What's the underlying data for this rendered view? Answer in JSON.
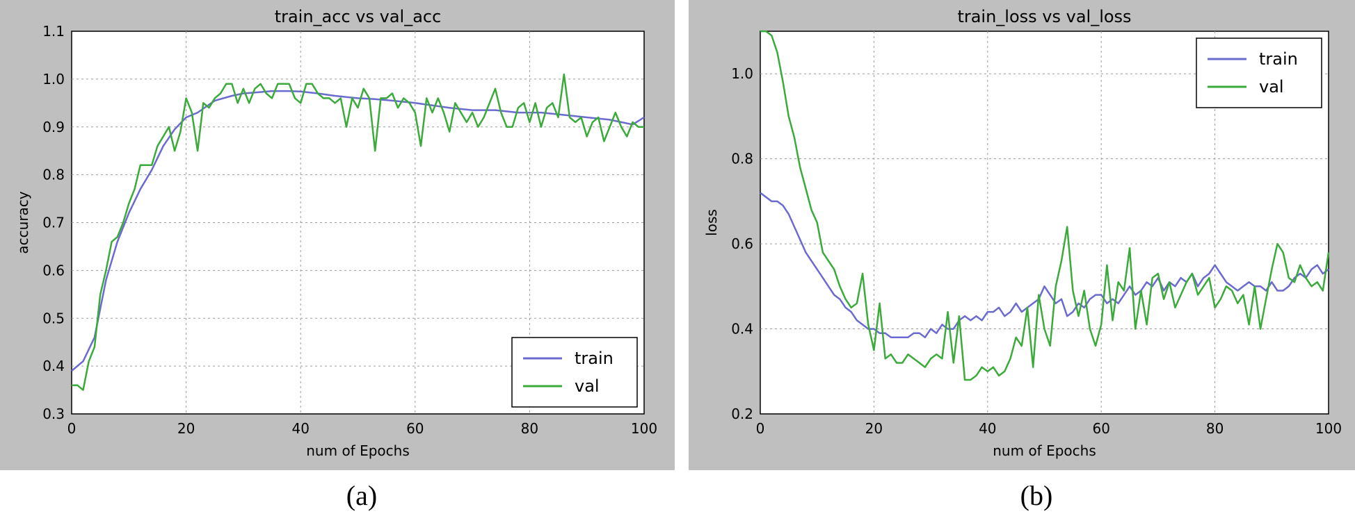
{
  "captions": [
    "(a)",
    "(b)"
  ],
  "chart_data": [
    {
      "type": "line",
      "title": "train_acc vs val_acc",
      "xlabel": "num of Epochs",
      "ylabel": "accuracy",
      "xlim": [
        0,
        100
      ],
      "ylim": [
        0.3,
        1.1
      ],
      "xticks": [
        0,
        20,
        40,
        60,
        80,
        100
      ],
      "yticks": [
        0.3,
        0.4,
        0.5,
        0.6,
        0.7,
        0.8,
        0.9,
        1.0,
        1.1
      ],
      "grid": true,
      "legend_position": "lower-right",
      "series": [
        {
          "name": "train",
          "color": "#6a6ad0",
          "x": [
            0,
            2,
            4,
            6,
            8,
            10,
            12,
            14,
            16,
            18,
            20,
            22,
            25,
            28,
            30,
            32,
            35,
            38,
            40,
            43,
            46,
            50,
            53,
            56,
            60,
            63,
            66,
            70,
            74,
            78,
            82,
            86,
            90,
            94,
            96,
            98,
            100
          ],
          "y": [
            0.39,
            0.41,
            0.46,
            0.58,
            0.66,
            0.72,
            0.77,
            0.81,
            0.86,
            0.895,
            0.92,
            0.93,
            0.955,
            0.965,
            0.97,
            0.972,
            0.975,
            0.975,
            0.974,
            0.97,
            0.965,
            0.96,
            0.958,
            0.955,
            0.95,
            0.945,
            0.94,
            0.935,
            0.935,
            0.93,
            0.93,
            0.925,
            0.92,
            0.915,
            0.91,
            0.905,
            0.92
          ]
        },
        {
          "name": "val",
          "color": "#3aaa3a",
          "x": [
            0,
            1,
            2,
            3,
            4,
            5,
            6,
            7,
            8,
            9,
            10,
            11,
            12,
            13,
            14,
            15,
            16,
            17,
            18,
            19,
            20,
            21,
            22,
            23,
            24,
            25,
            26,
            27,
            28,
            29,
            30,
            31,
            32,
            33,
            34,
            35,
            36,
            37,
            38,
            39,
            40,
            41,
            42,
            43,
            44,
            45,
            46,
            47,
            48,
            49,
            50,
            51,
            52,
            53,
            54,
            55,
            56,
            57,
            58,
            59,
            60,
            61,
            62,
            63,
            64,
            65,
            66,
            67,
            68,
            69,
            70,
            71,
            72,
            73,
            74,
            75,
            76,
            77,
            78,
            79,
            80,
            81,
            82,
            83,
            84,
            85,
            86,
            87,
            88,
            89,
            90,
            91,
            92,
            93,
            94,
            95,
            96,
            97,
            98,
            99,
            100
          ],
          "y": [
            0.36,
            0.36,
            0.35,
            0.41,
            0.44,
            0.55,
            0.6,
            0.66,
            0.67,
            0.7,
            0.74,
            0.77,
            0.82,
            0.82,
            0.82,
            0.86,
            0.88,
            0.9,
            0.85,
            0.89,
            0.96,
            0.93,
            0.85,
            0.95,
            0.94,
            0.96,
            0.97,
            0.99,
            0.99,
            0.95,
            0.98,
            0.95,
            0.98,
            0.99,
            0.97,
            0.96,
            0.99,
            0.99,
            0.99,
            0.96,
            0.95,
            0.99,
            0.99,
            0.97,
            0.96,
            0.96,
            0.95,
            0.96,
            0.9,
            0.96,
            0.94,
            0.98,
            0.96,
            0.85,
            0.96,
            0.96,
            0.97,
            0.94,
            0.96,
            0.95,
            0.93,
            0.86,
            0.96,
            0.93,
            0.96,
            0.93,
            0.89,
            0.95,
            0.93,
            0.91,
            0.93,
            0.9,
            0.92,
            0.95,
            0.98,
            0.93,
            0.9,
            0.9,
            0.94,
            0.95,
            0.91,
            0.95,
            0.9,
            0.94,
            0.95,
            0.92,
            1.01,
            0.92,
            0.91,
            0.92,
            0.88,
            0.91,
            0.92,
            0.87,
            0.9,
            0.93,
            0.9,
            0.88,
            0.91,
            0.9,
            0.9
          ]
        }
      ]
    },
    {
      "type": "line",
      "title": "train_loss vs val_loss",
      "xlabel": "num of Epochs",
      "ylabel": "loss",
      "xlim": [
        0,
        100
      ],
      "ylim": [
        0.2,
        1.1
      ],
      "xticks": [
        0,
        20,
        40,
        60,
        80,
        100
      ],
      "yticks": [
        0.2,
        0.4,
        0.6,
        0.8,
        1.0
      ],
      "grid": true,
      "legend_position": "upper-right",
      "series": [
        {
          "name": "train",
          "color": "#6a6ad0",
          "x": [
            0,
            1,
            2,
            3,
            4,
            5,
            6,
            7,
            8,
            9,
            10,
            11,
            12,
            13,
            14,
            15,
            16,
            17,
            18,
            19,
            20,
            21,
            22,
            23,
            24,
            25,
            26,
            27,
            28,
            29,
            30,
            31,
            32,
            33,
            34,
            35,
            36,
            37,
            38,
            39,
            40,
            41,
            42,
            43,
            44,
            45,
            46,
            47,
            48,
            49,
            50,
            51,
            52,
            53,
            54,
            55,
            56,
            57,
            58,
            59,
            60,
            61,
            62,
            63,
            64,
            65,
            66,
            67,
            68,
            69,
            70,
            71,
            72,
            73,
            74,
            75,
            76,
            77,
            78,
            79,
            80,
            81,
            82,
            83,
            84,
            85,
            86,
            87,
            88,
            89,
            90,
            91,
            92,
            93,
            94,
            95,
            96,
            97,
            98,
            99,
            100
          ],
          "y": [
            0.72,
            0.71,
            0.7,
            0.7,
            0.69,
            0.67,
            0.64,
            0.61,
            0.58,
            0.56,
            0.54,
            0.52,
            0.5,
            0.48,
            0.47,
            0.45,
            0.44,
            0.42,
            0.41,
            0.4,
            0.4,
            0.39,
            0.39,
            0.38,
            0.38,
            0.38,
            0.38,
            0.39,
            0.39,
            0.38,
            0.4,
            0.39,
            0.41,
            0.4,
            0.4,
            0.42,
            0.43,
            0.42,
            0.43,
            0.42,
            0.44,
            0.44,
            0.45,
            0.43,
            0.44,
            0.46,
            0.44,
            0.45,
            0.46,
            0.47,
            0.5,
            0.48,
            0.46,
            0.47,
            0.43,
            0.44,
            0.46,
            0.45,
            0.47,
            0.48,
            0.48,
            0.46,
            0.47,
            0.46,
            0.48,
            0.5,
            0.48,
            0.49,
            0.51,
            0.5,
            0.52,
            0.49,
            0.51,
            0.5,
            0.52,
            0.51,
            0.53,
            0.5,
            0.52,
            0.53,
            0.55,
            0.53,
            0.51,
            0.5,
            0.49,
            0.5,
            0.51,
            0.5,
            0.5,
            0.49,
            0.51,
            0.49,
            0.49,
            0.5,
            0.52,
            0.53,
            0.52,
            0.54,
            0.55,
            0.53,
            0.54
          ]
        },
        {
          "name": "val",
          "color": "#3aaa3a",
          "x": [
            0,
            1,
            2,
            3,
            4,
            5,
            6,
            7,
            8,
            9,
            10,
            11,
            12,
            13,
            14,
            15,
            16,
            17,
            18,
            19,
            20,
            21,
            22,
            23,
            24,
            25,
            26,
            27,
            28,
            29,
            30,
            31,
            32,
            33,
            34,
            35,
            36,
            37,
            38,
            39,
            40,
            41,
            42,
            43,
            44,
            45,
            46,
            47,
            48,
            49,
            50,
            51,
            52,
            53,
            54,
            55,
            56,
            57,
            58,
            59,
            60,
            61,
            62,
            63,
            64,
            65,
            66,
            67,
            68,
            69,
            70,
            71,
            72,
            73,
            74,
            75,
            76,
            77,
            78,
            79,
            80,
            81,
            82,
            83,
            84,
            85,
            86,
            87,
            88,
            89,
            90,
            91,
            92,
            93,
            94,
            95,
            96,
            97,
            98,
            99,
            100
          ],
          "y": [
            1.1,
            1.1,
            1.09,
            1.05,
            0.98,
            0.9,
            0.85,
            0.78,
            0.73,
            0.68,
            0.65,
            0.58,
            0.56,
            0.54,
            0.5,
            0.47,
            0.45,
            0.46,
            0.53,
            0.41,
            0.35,
            0.46,
            0.33,
            0.34,
            0.32,
            0.32,
            0.34,
            0.33,
            0.32,
            0.31,
            0.33,
            0.34,
            0.33,
            0.44,
            0.32,
            0.43,
            0.28,
            0.28,
            0.29,
            0.31,
            0.3,
            0.31,
            0.29,
            0.3,
            0.33,
            0.38,
            0.36,
            0.45,
            0.31,
            0.48,
            0.4,
            0.36,
            0.5,
            0.56,
            0.64,
            0.49,
            0.43,
            0.49,
            0.4,
            0.36,
            0.41,
            0.55,
            0.42,
            0.51,
            0.49,
            0.59,
            0.4,
            0.49,
            0.41,
            0.52,
            0.53,
            0.47,
            0.51,
            0.45,
            0.48,
            0.51,
            0.53,
            0.48,
            0.5,
            0.52,
            0.45,
            0.47,
            0.5,
            0.49,
            0.46,
            0.48,
            0.41,
            0.5,
            0.4,
            0.47,
            0.54,
            0.6,
            0.58,
            0.52,
            0.51,
            0.55,
            0.52,
            0.5,
            0.51,
            0.49,
            0.58
          ]
        }
      ]
    }
  ]
}
